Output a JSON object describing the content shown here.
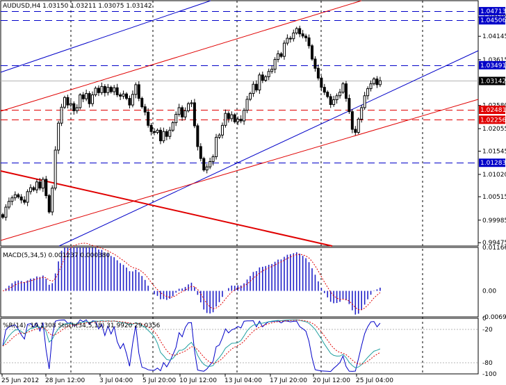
{
  "chart_data": [
    {
      "type": "candlestick",
      "header": "AUDUSD,H4  1.03150 1.03211 1.03075 1.03142",
      "symbol": "AUDUSD",
      "timeframe": "H4",
      "ohlc_last": {
        "open": 1.0315,
        "high": 1.03211,
        "low": 1.03075,
        "close": 1.03142
      },
      "price_ticks": [
        "1.04580",
        "1.04145",
        "1.03615",
        "1.02580",
        "1.02055",
        "1.01545",
        "1.01020",
        "1.00515",
        "0.99985",
        "0.99475"
      ],
      "x_ticks": [
        "25 Jun 2012",
        "28 Jun 12:00",
        "3 Jul 04:00",
        "5 Jul 20:00",
        "10 Jul 12:00",
        "13 Jul 04:00",
        "17 Jul 20:00",
        "20 Jul 12:00",
        "25 Jul 04:00"
      ],
      "ylim": [
        0.994,
        1.0495
      ],
      "horizontal_levels": [
        {
          "label": "1.04713",
          "price": 1.04713,
          "color": "#0000c8"
        },
        {
          "label": "1.04506",
          "price": 1.04506,
          "color": "#0000c8"
        },
        {
          "label": "1.03491",
          "price": 1.03491,
          "color": "#0000c8"
        },
        {
          "label": "1.02481",
          "price": 1.02481,
          "color": "#e00000"
        },
        {
          "label": "1.02256",
          "price": 1.02256,
          "color": "#e00000"
        },
        {
          "label": "1.01283",
          "price": 1.01283,
          "color": "#0000c8"
        }
      ],
      "current_price": {
        "label": "1.03142",
        "price": 1.03142
      },
      "close": [
        1.0005,
        1.0028,
        1.0041,
        1.0049,
        1.0056,
        1.0051,
        1.0044,
        1.0039,
        1.0063,
        1.0072,
        1.0067,
        1.0085,
        1.0071,
        1.0091,
        1.0054,
        1.0017,
        1.0071,
        1.0157,
        1.0218,
        1.0254,
        1.0276,
        1.0259,
        1.0262,
        1.0246,
        1.0253,
        1.0282,
        1.0273,
        1.0285,
        1.0262,
        1.0282,
        1.0297,
        1.0287,
        1.0301,
        1.0287,
        1.0299,
        1.0289,
        1.0298,
        1.0282,
        1.0279,
        1.0284,
        1.0274,
        1.0259,
        1.0283,
        1.0305,
        1.0274,
        1.0255,
        1.0243,
        1.0213,
        1.0199,
        1.0197,
        1.0202,
        1.0178,
        1.0199,
        1.0188,
        1.0202,
        1.0219,
        1.0238,
        1.0253,
        1.0232,
        1.0246,
        1.0262,
        1.0264,
        1.0212,
        1.0165,
        1.0138,
        1.0112,
        1.0119,
        1.0131,
        1.0142,
        1.0186,
        1.0191,
        1.0213,
        1.024,
        1.0228,
        1.0237,
        1.0221,
        1.0227,
        1.0223,
        1.0247,
        1.0272,
        1.0285,
        1.0306,
        1.0293,
        1.0327,
        1.0315,
        1.0323,
        1.0335,
        1.034,
        1.0362,
        1.0375,
        1.0369,
        1.0399,
        1.041,
        1.0409,
        1.0422,
        1.0432,
        1.042,
        1.0415,
        1.0411,
        1.0393,
        1.0363,
        1.0342,
        1.032,
        1.0299,
        1.0288,
        1.0278,
        1.026,
        1.0271,
        1.028,
        1.0288,
        1.0307,
        1.0274,
        1.0244,
        1.0204,
        1.0197,
        1.0227,
        1.0253,
        1.028,
        1.0296,
        1.0307,
        1.0318,
        1.0305,
        1.0314
      ],
      "indicators": [
        {
          "name": "MACD(5,34,5) 0.001237 0.000380",
          "ticks": [
            "0.011668",
            "0.00",
            "-0.006969"
          ],
          "ylim": [
            -0.007,
            0.0117
          ]
        },
        {
          "name": "%R(14) -19.1308 Stoch(34,5,18) 31.9920 29.0356",
          "ticks": [
            "0",
            "-20",
            "-80",
            "-100"
          ],
          "ylim": [
            -100,
            0
          ]
        }
      ]
    }
  ]
}
